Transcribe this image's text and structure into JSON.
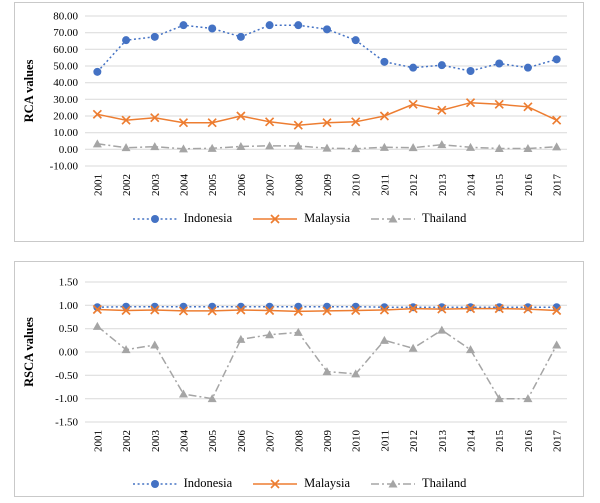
{
  "figure": {
    "background_color": "#ffffff",
    "panel_border_color": "#c9c9c9",
    "gridline_color": "#d9d9d9"
  },
  "chart_data": [
    {
      "type": "line",
      "title": "",
      "xlabel": "",
      "ylabel": "RCA values",
      "ylim": [
        -10,
        80
      ],
      "ystep": 10,
      "grid": true,
      "legend_position": "bottom",
      "y_tick_labels": [
        "80.00",
        "70.00",
        "60.00",
        "50.00",
        "40.00",
        "30.00",
        "20.00",
        "10.00",
        "0.00",
        "-10.00"
      ],
      "categories": [
        "2001",
        "2002",
        "2003",
        "2004",
        "2005",
        "2006",
        "2007",
        "2008",
        "2009",
        "2010",
        "2011",
        "2012",
        "2013",
        "2014",
        "2015",
        "2016",
        "2017"
      ],
      "series": [
        {
          "name": "Indonesia",
          "color": "#4472C4",
          "marker": "circle",
          "line_style": "dotted",
          "values": [
            46.5,
            65.5,
            67.5,
            74.5,
            72.5,
            67.5,
            74.5,
            74.5,
            72.0,
            65.5,
            52.5,
            49.0,
            50.5,
            47.0,
            51.5,
            49.0,
            54.0
          ]
        },
        {
          "name": "Malaysia",
          "color": "#ED7D31",
          "marker": "x",
          "line_style": "solid",
          "values": [
            21.0,
            17.5,
            19.0,
            16.0,
            16.0,
            20.0,
            16.5,
            14.5,
            16.0,
            16.5,
            20.0,
            27.0,
            23.5,
            28.0,
            27.0,
            25.5,
            17.5
          ]
        },
        {
          "name": "Thailand",
          "color": "#A5A5A5",
          "marker": "triangle",
          "line_style": "dashdot",
          "values": [
            3.3,
            1.0,
            1.6,
            0.3,
            0.6,
            1.7,
            2.1,
            2.0,
            0.7,
            0.4,
            1.2,
            1.0,
            2.8,
            1.2,
            0.5,
            0.5,
            1.5
          ]
        }
      ],
      "legend": [
        "Indonesia",
        "Malaysia",
        "Thailand"
      ]
    },
    {
      "type": "line",
      "title": "",
      "xlabel": "",
      "ylabel": "RSCA values",
      "ylim": [
        -1.5,
        1.5
      ],
      "ystep": 0.5,
      "grid": true,
      "legend_position": "bottom",
      "y_tick_labels": [
        "1.50",
        "1.00",
        "0.50",
        "0.00",
        "-0.50",
        "-1.00",
        "-1.50"
      ],
      "categories": [
        "2001",
        "2002",
        "2003",
        "2004",
        "2005",
        "2006",
        "2007",
        "2008",
        "2009",
        "2010",
        "2011",
        "2012",
        "2013",
        "2014",
        "2015",
        "2016",
        "2017"
      ],
      "series": [
        {
          "name": "Indonesia",
          "color": "#4472C4",
          "marker": "circle",
          "line_style": "dotted",
          "values": [
            0.96,
            0.97,
            0.97,
            0.97,
            0.97,
            0.97,
            0.97,
            0.97,
            0.97,
            0.97,
            0.96,
            0.96,
            0.96,
            0.96,
            0.96,
            0.96,
            0.96
          ]
        },
        {
          "name": "Malaysia",
          "color": "#ED7D31",
          "marker": "x",
          "line_style": "solid",
          "values": [
            0.91,
            0.89,
            0.9,
            0.88,
            0.88,
            0.9,
            0.89,
            0.87,
            0.88,
            0.89,
            0.9,
            0.93,
            0.92,
            0.93,
            0.93,
            0.92,
            0.89
          ]
        },
        {
          "name": "Thailand",
          "color": "#A5A5A5",
          "marker": "triangle",
          "line_style": "dashdot",
          "values": [
            0.55,
            0.05,
            0.15,
            -0.9,
            -1.0,
            0.27,
            0.37,
            0.42,
            -0.42,
            -0.47,
            0.25,
            0.08,
            0.47,
            0.05,
            -1.0,
            -1.0,
            0.15
          ]
        }
      ],
      "legend": [
        "Indonesia",
        "Malaysia",
        "Thailand"
      ]
    }
  ]
}
